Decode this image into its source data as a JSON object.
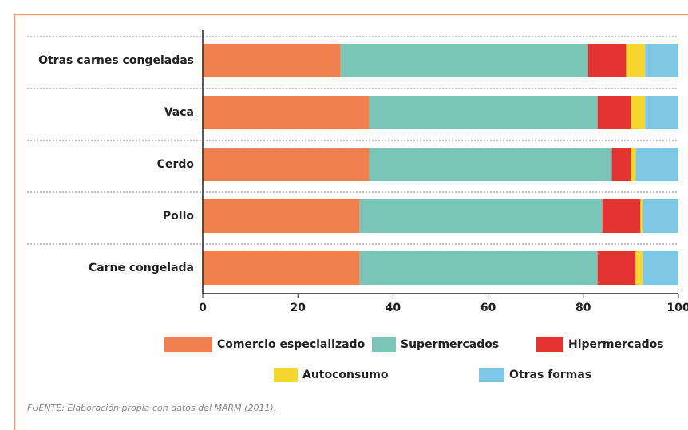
{
  "chart_data": {
    "type": "bar",
    "orientation": "horizontal",
    "stacked": true,
    "categories": [
      "Otras carnes congeladas",
      "Vaca",
      "Cerdo",
      "Pollo",
      "Carne congelada"
    ],
    "series": [
      {
        "name": "Comercio especializado",
        "color": "#f08050",
        "values": [
          29,
          35,
          35,
          33,
          33
        ]
      },
      {
        "name": "Supermercados",
        "color": "#7ac5b8",
        "values": [
          52,
          48,
          51,
          51,
          50
        ]
      },
      {
        "name": "Hipermercados",
        "color": "#e53232",
        "values": [
          8,
          7,
          4,
          8,
          8
        ]
      },
      {
        "name": "Autoconsumo",
        "color": "#f5d730",
        "values": [
          4,
          3,
          1,
          0.5,
          1.5
        ]
      },
      {
        "name": "Otras formas",
        "color": "#7ec8e6",
        "values": [
          7,
          7,
          9,
          7.5,
          7.5
        ]
      }
    ],
    "xlim": [
      0,
      100
    ],
    "xticks": [
      0,
      20,
      40,
      60,
      80,
      100
    ],
    "source": "FUENTE: Elaboración propia con datos del MARM (2011)."
  }
}
